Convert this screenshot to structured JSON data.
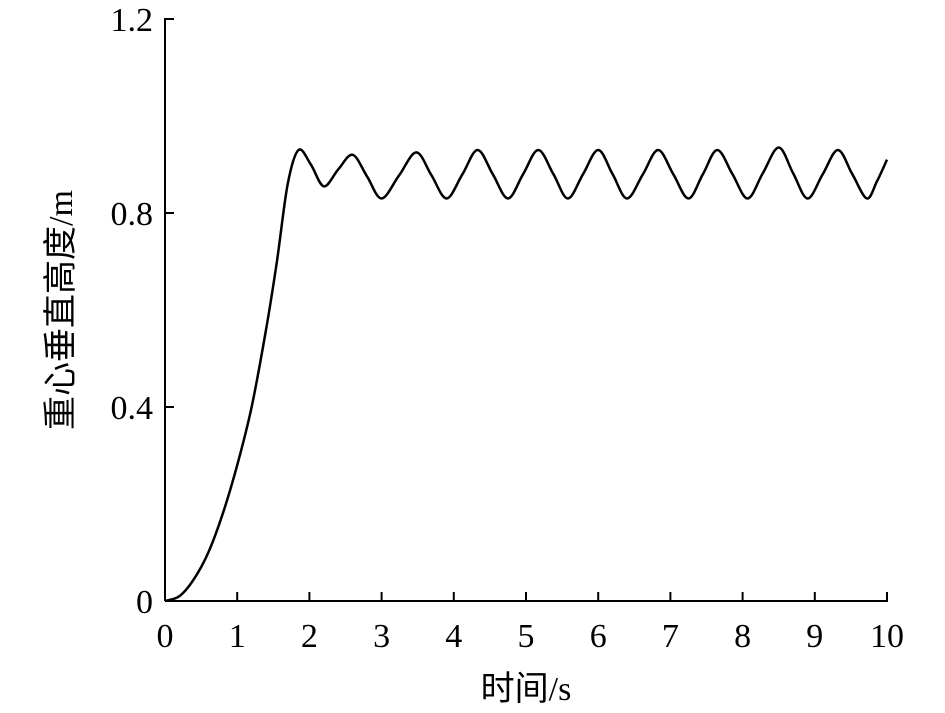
{
  "chart_data": {
    "type": "line",
    "x_label": "时间/s",
    "y_label": "重心垂直高度/m",
    "x": [
      0,
      0.2,
      0.4,
      0.6,
      0.8,
      1.0,
      1.2,
      1.4,
      1.55,
      1.7,
      1.85,
      2.02,
      2.2,
      2.4,
      2.6,
      2.8,
      3.0,
      3.24,
      3.48,
      3.69,
      3.9,
      4.12,
      4.33,
      4.54,
      4.75,
      4.96,
      5.17,
      5.38,
      5.58,
      5.79,
      6.0,
      6.2,
      6.4,
      6.62,
      6.83,
      7.04,
      7.25,
      7.45,
      7.65,
      7.86,
      8.07,
      8.28,
      8.5,
      8.7,
      8.9,
      9.11,
      9.32,
      9.52,
      9.72,
      9.86,
      10.0
    ],
    "series": [
      {
        "color": "#000000",
        "values": [
          0,
          0.01,
          0.045,
          0.1,
          0.18,
          0.28,
          0.4,
          0.56,
          0.7,
          0.86,
          0.93,
          0.9,
          0.855,
          0.89,
          0.92,
          0.875,
          0.83,
          0.877,
          0.925,
          0.878,
          0.83,
          0.88,
          0.93,
          0.88,
          0.83,
          0.88,
          0.93,
          0.88,
          0.83,
          0.88,
          0.93,
          0.88,
          0.83,
          0.88,
          0.93,
          0.88,
          0.83,
          0.88,
          0.93,
          0.88,
          0.83,
          0.882,
          0.935,
          0.882,
          0.83,
          0.88,
          0.93,
          0.88,
          0.83,
          0.865,
          0.91
        ]
      }
    ],
    "xlim": [
      0,
      10
    ],
    "xticks": [
      0,
      1,
      2,
      3,
      4,
      5,
      6,
      7,
      8,
      9,
      10
    ],
    "ylim": [
      0,
      1.2
    ],
    "yticks": [
      0,
      0.4,
      0.8,
      1.2
    ]
  }
}
